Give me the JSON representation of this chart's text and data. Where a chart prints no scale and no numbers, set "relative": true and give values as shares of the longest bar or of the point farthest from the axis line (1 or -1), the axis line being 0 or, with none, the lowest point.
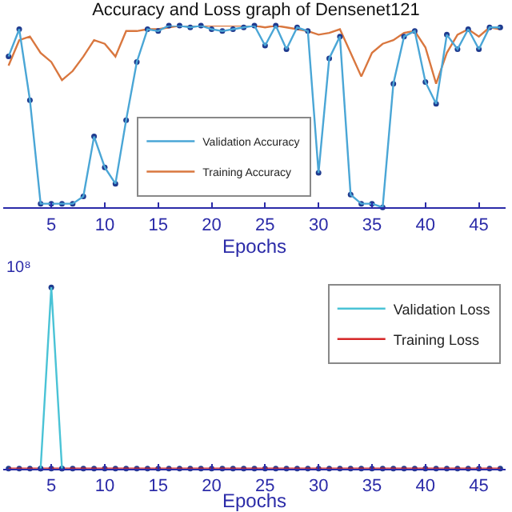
{
  "chart_data": [
    {
      "type": "line",
      "title": "Accuracy and Loss graph of Densenet121",
      "xlabel": "Epochs",
      "relative": true,
      "xlim": [
        0.5,
        47.5
      ],
      "xticks": [
        5,
        10,
        15,
        20,
        25,
        30,
        35,
        40,
        45
      ],
      "x": [
        1,
        2,
        3,
        4,
        5,
        6,
        7,
        8,
        9,
        10,
        11,
        12,
        13,
        14,
        15,
        16,
        17,
        18,
        19,
        20,
        21,
        22,
        23,
        24,
        25,
        26,
        27,
        28,
        29,
        30,
        31,
        32,
        33,
        34,
        35,
        36,
        37,
        38,
        39,
        40,
        41,
        42,
        43,
        44,
        45,
        46,
        47
      ],
      "legend": "bottom",
      "series": [
        {
          "name": "Validation Accuracy",
          "color": "#4aa6d6",
          "marker": "circle",
          "values": [
            0.83,
            0.98,
            0.59,
            0.02,
            0.02,
            0.02,
            0.02,
            0.06,
            0.39,
            0.22,
            0.13,
            0.48,
            0.8,
            0.98,
            0.97,
            1,
            1,
            0.99,
            1,
            0.98,
            0.97,
            0.98,
            0.99,
            1,
            0.89,
            1,
            0.87,
            0.99,
            0.97,
            0.19,
            0.82,
            0.94,
            0.07,
            0.02,
            0.02,
            0,
            0.68,
            0.94,
            0.97,
            0.69,
            0.57,
            0.95,
            0.87,
            0.98,
            0.87,
            0.99,
            0.99
          ]
        },
        {
          "name": "Training Accuracy",
          "color": "#d9773f",
          "marker": "none",
          "values": [
            0.78,
            0.92,
            0.94,
            0.85,
            0.8,
            0.7,
            0.75,
            0.83,
            0.92,
            0.9,
            0.83,
            0.97,
            0.97,
            0.98,
            0.98,
            0.99,
            1,
            1,
            1,
            1,
            1,
            1,
            1,
            1,
            0.99,
            1,
            0.99,
            0.98,
            0.97,
            0.95,
            0.96,
            0.98,
            0.85,
            0.72,
            0.85,
            0.9,
            0.92,
            0.96,
            0.97,
            0.88,
            0.68,
            0.85,
            0.95,
            0.98,
            0.94,
            0.99,
            0.98
          ]
        }
      ]
    },
    {
      "type": "line",
      "xlabel": "Epochs",
      "relative": true,
      "xlim": [
        0.5,
        47.5
      ],
      "xticks": [
        5,
        10,
        15,
        20,
        25,
        30,
        35,
        40,
        45
      ],
      "x": [
        1,
        2,
        3,
        4,
        5,
        6,
        7,
        8,
        9,
        10,
        11,
        12,
        13,
        14,
        15,
        16,
        17,
        18,
        19,
        20,
        21,
        22,
        23,
        24,
        25,
        26,
        27,
        28,
        29,
        30,
        31,
        32,
        33,
        34,
        35,
        36,
        37,
        38,
        39,
        40,
        41,
        42,
        43,
        44,
        45,
        46,
        47
      ],
      "legend": "top right",
      "annotations": [
        "10⁸"
      ],
      "series": [
        {
          "name": "Validation Loss",
          "color": "#4ac3d6",
          "marker": "circle",
          "values": [
            null,
            null,
            null,
            0,
            1,
            0,
            null,
            null,
            null,
            null,
            null,
            null,
            null,
            null,
            null,
            null,
            null,
            null,
            null,
            null,
            null,
            null,
            null,
            null,
            null,
            null,
            null,
            null,
            null,
            null,
            null,
            null,
            null,
            null,
            null,
            null,
            null,
            null,
            null,
            null,
            null,
            null,
            null,
            null,
            null,
            null,
            null
          ]
        },
        {
          "name": "Training Loss",
          "color": "#d62728",
          "marker": "circle",
          "values": [
            0,
            0,
            0,
            0,
            0,
            0,
            0,
            0,
            0,
            0,
            0,
            0,
            0,
            0,
            0,
            0,
            0,
            0,
            0,
            0,
            0,
            0,
            0,
            0,
            0,
            0,
            0,
            0,
            0,
            0,
            0,
            0,
            0,
            0,
            0,
            0,
            0,
            0,
            0,
            0,
            0,
            0,
            0,
            0,
            0,
            0,
            0
          ]
        }
      ]
    }
  ]
}
